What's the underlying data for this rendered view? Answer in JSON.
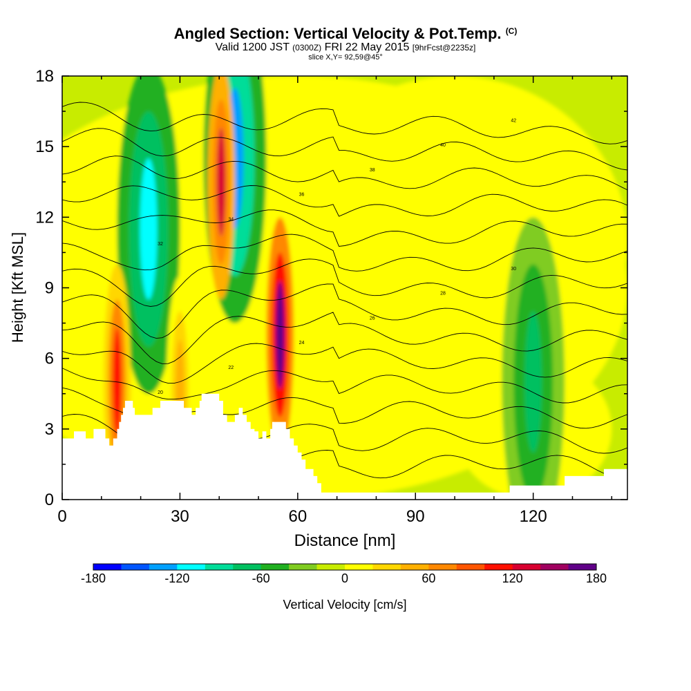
{
  "chart_data": {
    "type": "heatmap",
    "title": "Angled Section: Vertical Velocity & Pot.Temp.",
    "title_unit": "(C)",
    "subtitle": {
      "valid": "Valid 1200 JST",
      "utc": "(0300Z)",
      "date": "FRI 22 May 2015",
      "forecast": "[9hrFcst@2235z]"
    },
    "slice_label": "slice X,Y= 92,59@45°",
    "xlabel": "Distance [nm]",
    "ylabel": "Height [Kft MSL]",
    "xlim": [
      0,
      144
    ],
    "ylim": [
      0,
      18
    ],
    "xticks": [
      0,
      30,
      60,
      90,
      120
    ],
    "yticks": [
      0,
      3,
      6,
      9,
      12,
      15,
      18
    ],
    "colorbar": {
      "label": "Vertical Velocity [cm/s]",
      "ticks": [
        -180,
        -120,
        -60,
        0,
        60,
        120,
        180
      ],
      "colors": [
        "#0000ff",
        "#0055ff",
        "#00a0ff",
        "#00ffff",
        "#00dd99",
        "#00c060",
        "#20b020",
        "#80cc20",
        "#c8ec00",
        "#ffff00",
        "#ffd700",
        "#ffb000",
        "#ff8800",
        "#ff5500",
        "#ff1000",
        "#d80030",
        "#a00060",
        "#600088"
      ]
    },
    "updrafts": [
      {
        "x": 14,
        "y_center": 5.0,
        "max": 100
      },
      {
        "x": 40.5,
        "y_center": 13.5,
        "max": 120
      },
      {
        "x": 55.5,
        "y_center": 7.0,
        "max": 180
      },
      {
        "x": 30,
        "y_center": 4.5,
        "max": 40
      }
    ],
    "downdrafts": [
      {
        "x": 22,
        "y_center": 11.5,
        "min": -120
      },
      {
        "x": 44,
        "y_center": 14.5,
        "min": -130
      },
      {
        "x": 120,
        "y_center": 5.0,
        "min": -70
      }
    ],
    "isentrope_labels": [
      "20",
      "22",
      "24",
      "26",
      "28",
      "30",
      "32",
      "34",
      "36",
      "38",
      "40",
      "42"
    ],
    "terrain_kft": [
      [
        0,
        2.6
      ],
      [
        3,
        2.6
      ],
      [
        3,
        2.9
      ],
      [
        6,
        2.9
      ],
      [
        6,
        2.6
      ],
      [
        8,
        2.6
      ],
      [
        8,
        3.0
      ],
      [
        11,
        3.0
      ],
      [
        11,
        2.6
      ],
      [
        12,
        2.6
      ],
      [
        12,
        2.3
      ],
      [
        13,
        2.3
      ],
      [
        13,
        2.6
      ],
      [
        14,
        2.6
      ],
      [
        14,
        3.0
      ],
      [
        14.5,
        3.0
      ],
      [
        14.5,
        3.3
      ],
      [
        15,
        3.3
      ],
      [
        15,
        3.6
      ],
      [
        15.5,
        3.6
      ],
      [
        15.5,
        3.9
      ],
      [
        16,
        3.9
      ],
      [
        16,
        4.2
      ],
      [
        18,
        4.2
      ],
      [
        18,
        3.9
      ],
      [
        18.5,
        3.9
      ],
      [
        18.5,
        3.6
      ],
      [
        23,
        3.6
      ],
      [
        23,
        3.9
      ],
      [
        25,
        3.9
      ],
      [
        25,
        4.2
      ],
      [
        31,
        4.2
      ],
      [
        31,
        3.9
      ],
      [
        33,
        3.9
      ],
      [
        33,
        3.6
      ],
      [
        34,
        3.6
      ],
      [
        34,
        3.9
      ],
      [
        35,
        3.9
      ],
      [
        35,
        4.2
      ],
      [
        35.5,
        4.2
      ],
      [
        35.5,
        4.5
      ],
      [
        40,
        4.5
      ],
      [
        40,
        4.2
      ],
      [
        41,
        4.2
      ],
      [
        41,
        3.6
      ],
      [
        42,
        3.6
      ],
      [
        42,
        3.3
      ],
      [
        44,
        3.3
      ],
      [
        44,
        3.6
      ],
      [
        45,
        3.6
      ],
      [
        45,
        3.9
      ],
      [
        46,
        3.9
      ],
      [
        46,
        3.6
      ],
      [
        47,
        3.6
      ],
      [
        47,
        3.3
      ],
      [
        48,
        3.3
      ],
      [
        48,
        3.0
      ],
      [
        49,
        3.0
      ],
      [
        49,
        2.9
      ],
      [
        50,
        2.9
      ],
      [
        50,
        2.6
      ],
      [
        51,
        2.6
      ],
      [
        51,
        2.9
      ],
      [
        52,
        2.9
      ],
      [
        52,
        2.6
      ],
      [
        53,
        2.6
      ],
      [
        53,
        3.0
      ],
      [
        53.5,
        3.0
      ],
      [
        53.5,
        3.3
      ],
      [
        57,
        3.3
      ],
      [
        57,
        3.0
      ],
      [
        58,
        3.0
      ],
      [
        58,
        2.6
      ],
      [
        59,
        2.6
      ],
      [
        59,
        2.3
      ],
      [
        60,
        2.3
      ],
      [
        60,
        2.0
      ],
      [
        61,
        2.0
      ],
      [
        61,
        1.7
      ],
      [
        62,
        1.7
      ],
      [
        62,
        1.3
      ],
      [
        64,
        1.3
      ],
      [
        64,
        1.0
      ],
      [
        65,
        1.0
      ],
      [
        65,
        0.7
      ],
      [
        66,
        0.7
      ],
      [
        66,
        0.3
      ],
      [
        114,
        0.3
      ],
      [
        114,
        0.6
      ],
      [
        128,
        0.6
      ],
      [
        128,
        1.0
      ],
      [
        138,
        1.0
      ],
      [
        138,
        1.3
      ],
      [
        144,
        1.3
      ]
    ]
  }
}
